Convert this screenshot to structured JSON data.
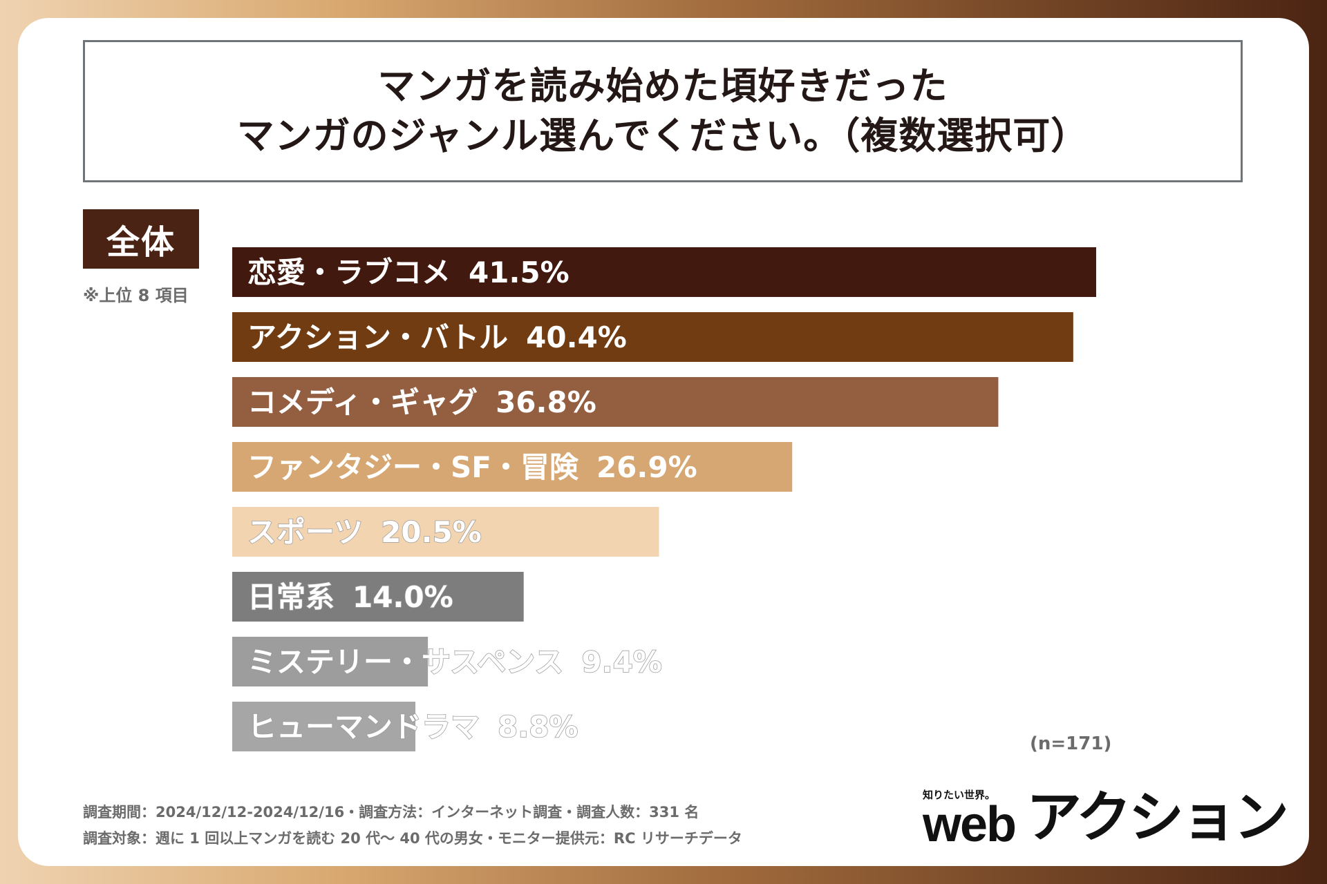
{
  "title": {
    "line1": "マンガを読み始めた頃好きだった",
    "line2": "マンガのジャンル選んでください。（複数選択可）"
  },
  "scope_label": "全体",
  "note": "※上位 8 項目",
  "sample_size": "(n=171)",
  "footer": {
    "line1": "調査期間：2024/12/12-2024/12/16・調査方法：インターネット調査・調査人数：331 名",
    "line2": "調査対象：週に 1 回以上マンガを読む 20 代～ 40 代の男女・モニター提供元：RC リサーチデータ"
  },
  "logo": {
    "tagline": "知りたい世界。",
    "web": "web",
    "name": "アクション"
  },
  "chart_data": {
    "type": "bar",
    "orientation": "horizontal",
    "categories": [
      "恋愛・ラブコメ",
      "アクション・バトル",
      "コメディ・ギャグ",
      "ファンタジー・SF・冒険",
      "スポーツ",
      "日常系",
      "ミステリー・サスペンス",
      "ヒューマンドラマ"
    ],
    "values": [
      41.5,
      40.4,
      36.8,
      26.9,
      20.5,
      14.0,
      9.4,
      8.8
    ],
    "value_labels": [
      "41.5%",
      "40.4%",
      "36.8%",
      "26.9%",
      "20.5%",
      "14.0%",
      "9.4%",
      "8.8%"
    ],
    "colors": [
      "#42190f",
      "#713c12",
      "#935f40",
      "#d6a773",
      "#f2d4b1",
      "#7d7d7d",
      "#9d9d9d",
      "#a6a6a6"
    ],
    "label_colors": [
      "#ffffff",
      "#ffffff",
      "#ffffff",
      "#ffffff",
      "#ffffff",
      "#ffffff",
      "#ffffff",
      "#ffffff"
    ],
    "xlim": [
      0,
      41.5
    ],
    "grid": false,
    "legend": "none"
  }
}
